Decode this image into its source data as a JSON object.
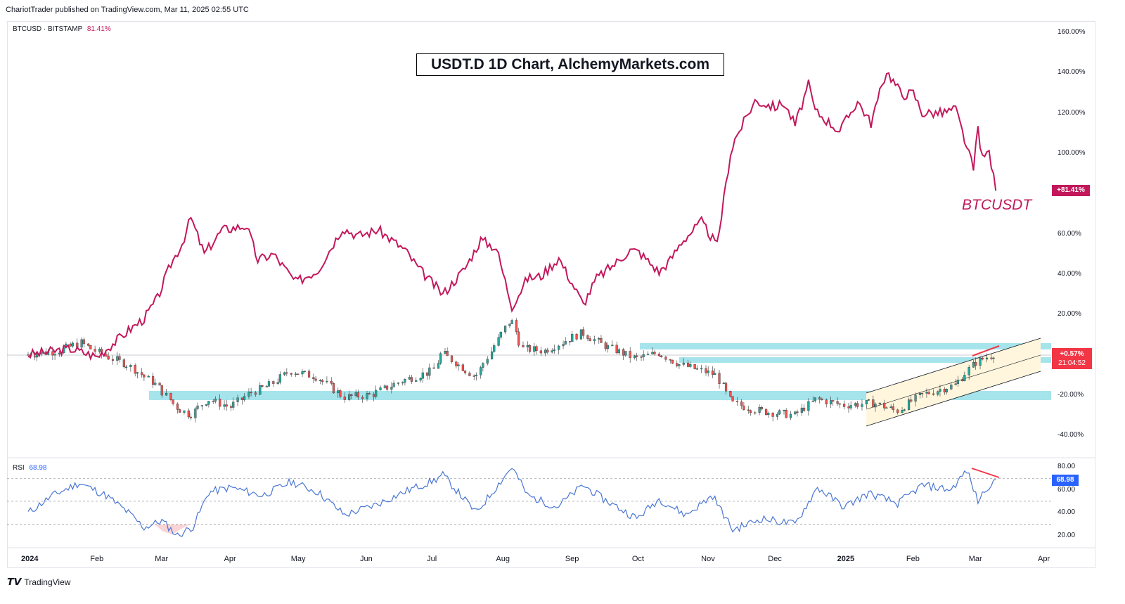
{
  "header": {
    "published": "ChariotTrader published on TradingView.com, Mar 11, 2025 02:55 UTC"
  },
  "legend": {
    "symbol": "BTCUSD · BITSTAMP",
    "percent": "81.41%"
  },
  "rsi_legend": {
    "label": "RSI",
    "value": "68.98"
  },
  "annotations": {
    "title": "USDT.D 1D Chart, AlchemyMarkets.com",
    "btc_label": "BTCUSDT"
  },
  "price_tags": {
    "btc": "+81.41%",
    "usdt_pct": "+0.57%",
    "usdt_timer": "21:04:52",
    "rsi": "68.98"
  },
  "footer": {
    "brand": "TradingView"
  },
  "colors": {
    "btc": "#c2185b",
    "rsi": "#4a76d4",
    "candle_up": "#26a69a",
    "candle_down": "#ef5350",
    "zone": "#a6e4ec",
    "channel": "#fff6dd"
  },
  "chart_data": [
    {
      "type": "line",
      "title": "USDT.D 1D Chart, AlchemyMarkets.com",
      "series": [
        {
          "name": "BTCUSDT",
          "points": [
            [
              "2024-01-01",
              0
            ],
            [
              "2024-01-20",
              3
            ],
            [
              "2024-02-01",
              -1
            ],
            [
              "2024-02-15",
              12
            ],
            [
              "2024-02-22",
              18
            ],
            [
              "2024-02-28",
              28
            ],
            [
              "2024-03-05",
              45
            ],
            [
              "2024-03-10",
              55
            ],
            [
              "2024-03-14",
              68
            ],
            [
              "2024-03-20",
              50
            ],
            [
              "2024-03-28",
              62
            ],
            [
              "2024-04-08",
              64
            ],
            [
              "2024-04-13",
              47
            ],
            [
              "2024-04-20",
              50
            ],
            [
              "2024-04-30",
              36
            ],
            [
              "2024-05-10",
              42
            ],
            [
              "2024-05-21",
              63
            ],
            [
              "2024-05-28",
              59
            ],
            [
              "2024-06-06",
              62
            ],
            [
              "2024-06-18",
              52
            ],
            [
              "2024-06-24",
              43
            ],
            [
              "2024-07-05",
              30
            ],
            [
              "2024-07-15",
              43
            ],
            [
              "2024-07-22",
              57
            ],
            [
              "2024-07-29",
              53
            ],
            [
              "2024-08-05",
              24
            ],
            [
              "2024-08-12",
              38
            ],
            [
              "2024-08-18",
              39
            ],
            [
              "2024-08-26",
              48
            ],
            [
              "2024-09-06",
              25
            ],
            [
              "2024-09-12",
              38
            ],
            [
              "2024-09-20",
              45
            ],
            [
              "2024-09-27",
              52
            ],
            [
              "2024-10-01",
              51
            ],
            [
              "2024-10-10",
              41
            ],
            [
              "2024-10-15",
              47
            ],
            [
              "2024-10-20",
              56
            ],
            [
              "2024-10-29",
              66
            ],
            [
              "2024-11-05",
              54
            ],
            [
              "2024-11-11",
              100
            ],
            [
              "2024-11-13",
              107
            ],
            [
              "2024-11-22",
              126
            ],
            [
              "2024-12-01",
              123
            ],
            [
              "2024-12-05",
              125
            ],
            [
              "2024-12-10",
              114
            ],
            [
              "2024-12-16",
              134
            ],
            [
              "2024-12-19",
              121
            ],
            [
              "2024-12-30",
              111
            ],
            [
              "2025-01-07",
              126
            ],
            [
              "2025-01-13",
              115
            ],
            [
              "2025-01-20",
              141
            ],
            [
              "2025-01-27",
              129
            ],
            [
              "2025-02-01",
              130
            ],
            [
              "2025-02-05",
              120
            ],
            [
              "2025-02-14",
              120
            ],
            [
              "2025-02-20",
              122
            ],
            [
              "2025-02-25",
              103
            ],
            [
              "2025-02-28",
              92
            ],
            [
              "2025-03-02",
              113
            ],
            [
              "2025-03-04",
              97
            ],
            [
              "2025-03-07",
              101
            ],
            [
              "2025-03-10",
              81.41
            ]
          ]
        }
      ],
      "y_axis": {
        "ticks": [
          "160.00%",
          "140.00%",
          "120.00%",
          "100.00%",
          "60.00%",
          "40.00%",
          "20.00%",
          "-20.00%",
          "-40.00%"
        ]
      },
      "x_axis": {
        "ticks": [
          "2024",
          "Feb",
          "Mar",
          "Apr",
          "May",
          "Jun",
          "Jul",
          "Aug",
          "Sep",
          "Oct",
          "Nov",
          "Dec",
          "2025",
          "Feb",
          "Mar",
          "Apr"
        ]
      }
    },
    {
      "type": "candlestick",
      "name": "USDT.D",
      "closes_pct_change": [
        [
          "2024-01-01",
          0
        ],
        [
          "2024-01-15",
          2
        ],
        [
          "2024-01-25",
          6
        ],
        [
          "2024-02-02",
          1
        ],
        [
          "2024-02-15",
          -5
        ],
        [
          "2024-02-28",
          -15
        ],
        [
          "2024-03-08",
          -26
        ],
        [
          "2024-03-14",
          -30
        ],
        [
          "2024-03-22",
          -22
        ],
        [
          "2024-04-01",
          -26
        ],
        [
          "2024-04-10",
          -19
        ],
        [
          "2024-04-19",
          -15
        ],
        [
          "2024-04-28",
          -8
        ],
        [
          "2024-05-10",
          -11
        ],
        [
          "2024-05-22",
          -21
        ],
        [
          "2024-06-03",
          -20
        ],
        [
          "2024-06-17",
          -13
        ],
        [
          "2024-07-01",
          -8
        ],
        [
          "2024-07-05",
          1
        ],
        [
          "2024-07-20",
          -11
        ],
        [
          "2024-08-05",
          18
        ],
        [
          "2024-08-10",
          3
        ],
        [
          "2024-08-20",
          2
        ],
        [
          "2024-09-06",
          11
        ],
        [
          "2024-09-15",
          5
        ],
        [
          "2024-09-30",
          -2
        ],
        [
          "2024-10-10",
          1
        ],
        [
          "2024-10-20",
          -5
        ],
        [
          "2024-11-05",
          -10
        ],
        [
          "2024-11-12",
          -24
        ],
        [
          "2024-11-25",
          -28
        ],
        [
          "2024-12-10",
          -30
        ],
        [
          "2024-12-20",
          -22
        ],
        [
          "2025-01-01",
          -25
        ],
        [
          "2025-01-15",
          -24
        ],
        [
          "2025-01-25",
          -28
        ],
        [
          "2025-02-05",
          -20
        ],
        [
          "2025-02-20",
          -15
        ],
        [
          "2025-03-01",
          -4
        ],
        [
          "2025-03-10",
          0.57
        ]
      ],
      "zones": [
        "-20% support",
        "0% resistance"
      ],
      "last": "+0.57%"
    },
    {
      "type": "line",
      "name": "RSI",
      "ylim": [
        15,
        85
      ],
      "y_axis": {
        "ticks": [
          "80.00",
          "60.00",
          "40.00",
          "20.00"
        ]
      },
      "levels": [
        70,
        50,
        30
      ],
      "points": [
        [
          "2024-01-01",
          40
        ],
        [
          "2024-01-12",
          55
        ],
        [
          "2024-01-24",
          66
        ],
        [
          "2024-02-05",
          55
        ],
        [
          "2024-02-15",
          40
        ],
        [
          "2024-02-22",
          27
        ],
        [
          "2024-03-01",
          33
        ],
        [
          "2024-03-08",
          20
        ],
        [
          "2024-03-15",
          28
        ],
        [
          "2024-03-22",
          58
        ],
        [
          "2024-04-01",
          62
        ],
        [
          "2024-04-15",
          55
        ],
        [
          "2024-04-28",
          67
        ],
        [
          "2024-05-10",
          58
        ],
        [
          "2024-05-22",
          38
        ],
        [
          "2024-06-05",
          47
        ],
        [
          "2024-06-20",
          60
        ],
        [
          "2024-07-01",
          68
        ],
        [
          "2024-07-05",
          73
        ],
        [
          "2024-07-20",
          40
        ],
        [
          "2024-08-05",
          80
        ],
        [
          "2024-08-12",
          55
        ],
        [
          "2024-08-25",
          45
        ],
        [
          "2024-09-06",
          64
        ],
        [
          "2024-09-15",
          52
        ],
        [
          "2024-09-30",
          35
        ],
        [
          "2024-10-10",
          52
        ],
        [
          "2024-10-22",
          38
        ],
        [
          "2024-11-03",
          55
        ],
        [
          "2024-11-12",
          25
        ],
        [
          "2024-11-25",
          35
        ],
        [
          "2024-12-10",
          30
        ],
        [
          "2024-12-20",
          62
        ],
        [
          "2025-01-01",
          45
        ],
        [
          "2025-01-12",
          57
        ],
        [
          "2025-01-25",
          48
        ],
        [
          "2025-02-05",
          64
        ],
        [
          "2025-02-18",
          60
        ],
        [
          "2025-02-25",
          77
        ],
        [
          "2025-03-02",
          50
        ],
        [
          "2025-03-06",
          62
        ],
        [
          "2025-03-10",
          68.98
        ]
      ]
    }
  ]
}
